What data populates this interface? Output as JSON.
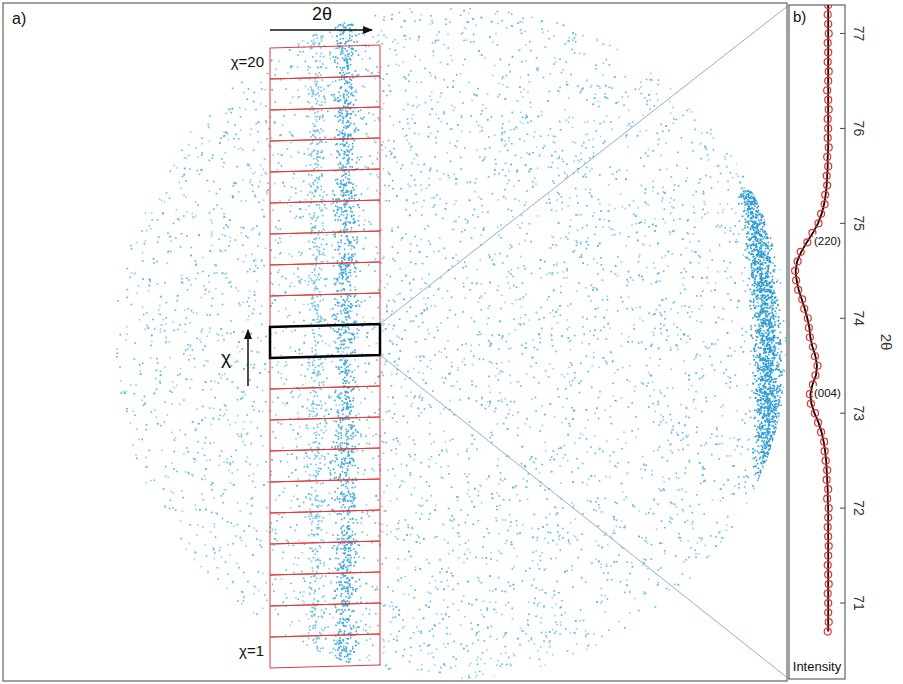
{
  "chart_data": [
    {
      "type": "image",
      "title": "a)",
      "x_label": "2θ",
      "y_label": "χ",
      "categories": [
        "χ=1",
        null,
        null,
        null,
        null,
        null,
        null,
        null,
        null,
        null,
        null,
        null,
        null,
        null,
        null,
        null,
        null,
        null,
        null,
        "χ=20"
      ],
      "highlight": 11
    },
    {
      "type": "scatter",
      "title": "b)",
      "x_label": "2θ",
      "y_label": "Intensity",
      "x": [
        70.7,
        70.8,
        70.9,
        71.0,
        71.1,
        71.2,
        71.3,
        71.4,
        71.5,
        71.6,
        71.7,
        71.8,
        71.9,
        72.0,
        72.1,
        72.2,
        72.3,
        72.4,
        72.5,
        72.6,
        72.7,
        72.8,
        72.9,
        73.0,
        73.1,
        73.2,
        73.3,
        73.4,
        73.5,
        73.6,
        73.7,
        73.8,
        73.9,
        74.0,
        74.1,
        74.2,
        74.3,
        74.4,
        74.5,
        74.6,
        74.7,
        74.8,
        74.9,
        75.0,
        75.1,
        75.2,
        75.3,
        75.4,
        75.5,
        75.6,
        75.7,
        75.8,
        75.9,
        76.0,
        76.1,
        76.2,
        76.3,
        76.4,
        76.5,
        76.6,
        76.7,
        76.8,
        76.9,
        77.0,
        77.1,
        77.2,
        77.3
      ],
      "xlim": [
        70.2,
        77.3
      ],
      "xticks": [
        71,
        72,
        73,
        74,
        75,
        76,
        77
      ],
      "ylim": [
        0,
        1.1
      ],
      "tick_labels": "x",
      "annotations": [
        {
          "text": "(220)",
          "x": 74.8
        },
        {
          "text": "(004)",
          "x": 73.2
        }
      ],
      "series": [
        {
          "type": "scatter",
          "marker": "circle",
          "color": "#e8312f",
          "values": [
            0.34,
            0.32,
            0.33,
            0.33,
            0.34,
            0.32,
            0.33,
            0.34,
            0.33,
            0.32,
            0.33,
            0.34,
            0.33,
            0.32,
            0.35,
            0.33,
            0.36,
            0.35,
            0.38,
            0.4,
            0.41,
            0.47,
            0.53,
            0.59,
            0.67,
            0.69,
            0.63,
            0.58,
            0.54,
            0.59,
            0.63,
            0.69,
            0.71,
            0.73,
            0.8,
            0.84,
            0.92,
            0.96,
            0.98,
            0.93,
            0.87,
            0.74,
            0.64,
            0.52,
            0.47,
            0.4,
            0.39,
            0.35,
            0.36,
            0.33,
            0.35,
            0.32,
            0.34,
            0.33,
            0.34,
            0.32,
            0.33,
            0.35,
            0.33,
            0.32,
            0.34,
            0.33,
            0.34,
            0.32,
            0.33,
            0.34,
            0.33
          ]
        },
        {
          "type": "line",
          "line_style": "solid",
          "color": "#000000",
          "values": [
            0.33,
            0.33,
            0.33,
            0.33,
            0.33,
            0.33,
            0.33,
            0.33,
            0.33,
            0.33,
            0.33,
            0.33,
            0.33,
            0.33,
            0.34,
            0.34,
            0.35,
            0.36,
            0.37,
            0.39,
            0.42,
            0.46,
            0.52,
            0.6,
            0.66,
            0.68,
            0.64,
            0.57,
            0.55,
            0.58,
            0.64,
            0.68,
            0.7,
            0.74,
            0.79,
            0.85,
            0.91,
            0.95,
            0.97,
            0.94,
            0.86,
            0.75,
            0.63,
            0.53,
            0.46,
            0.41,
            0.38,
            0.36,
            0.35,
            0.34,
            0.34,
            0.33,
            0.33,
            0.33,
            0.33,
            0.33,
            0.33,
            0.33,
            0.33,
            0.33,
            0.33,
            0.33,
            0.33,
            0.33,
            0.33,
            0.33,
            0.33
          ]
        }
      ]
    }
  ]
}
